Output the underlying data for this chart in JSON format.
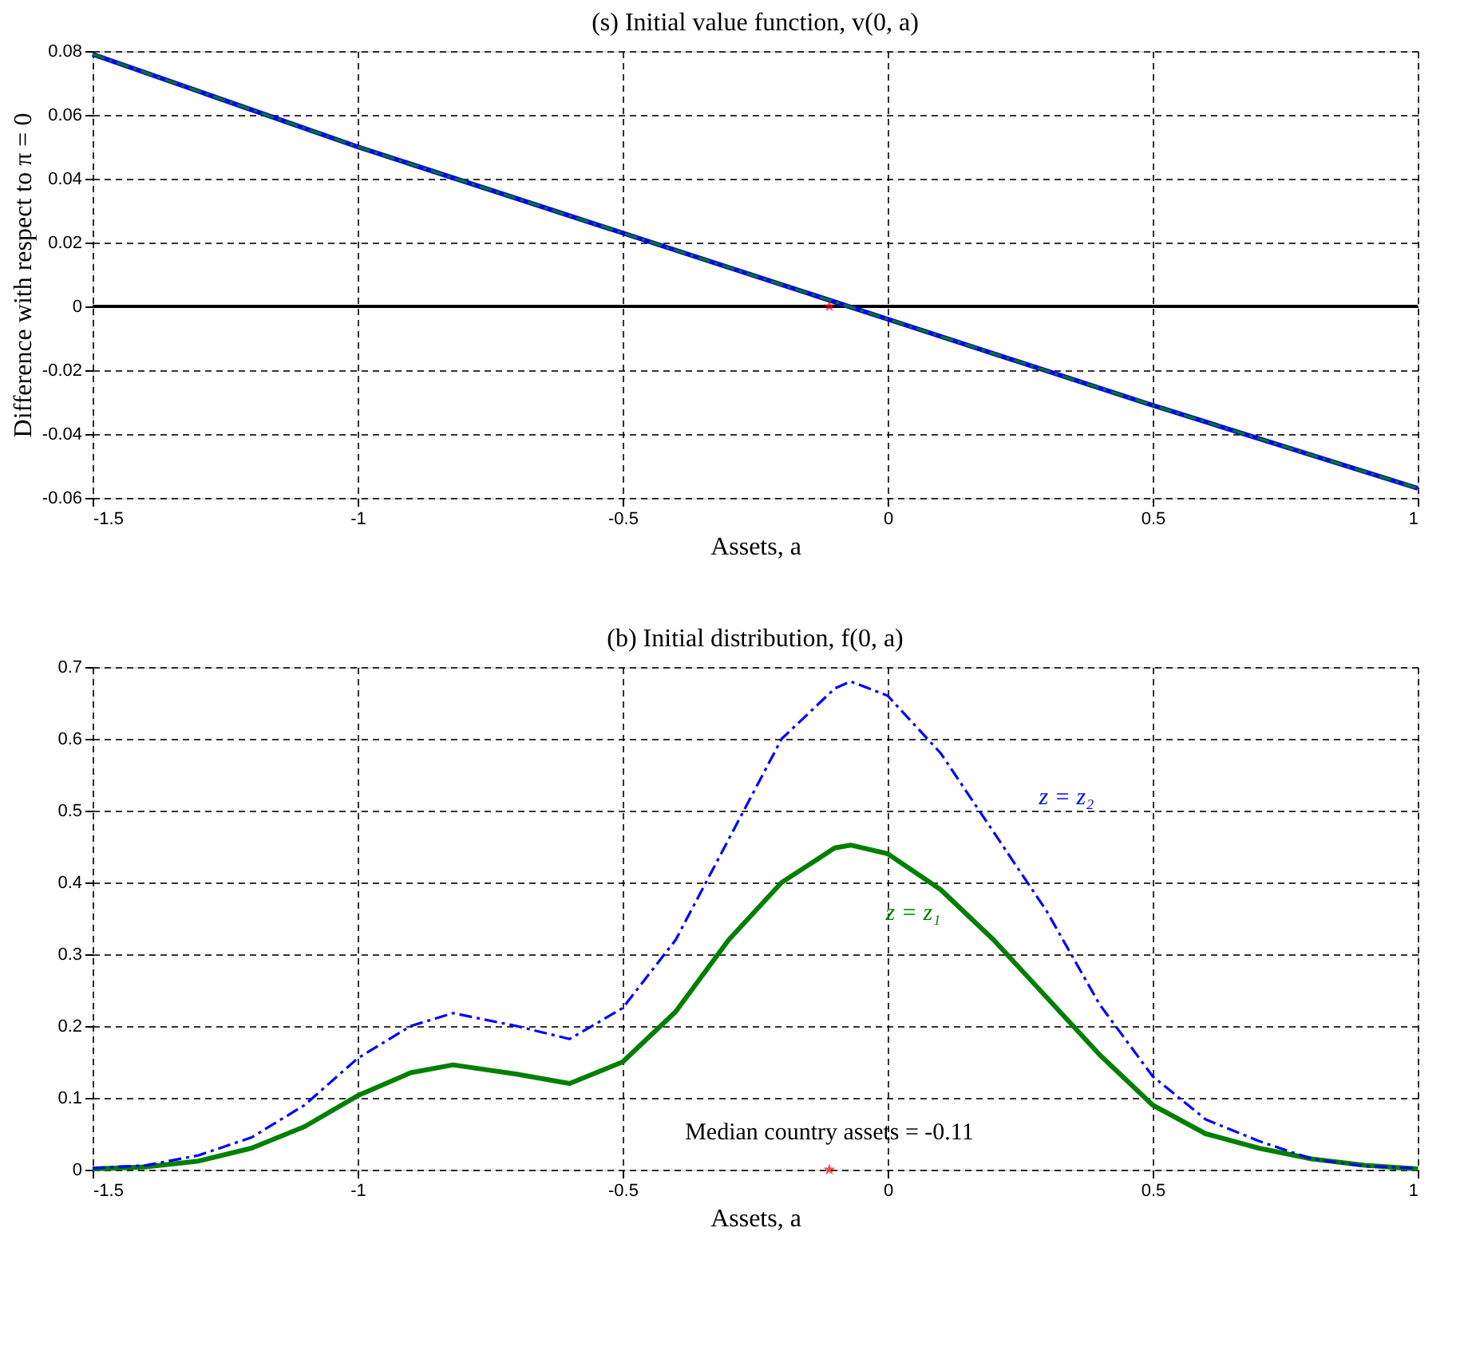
{
  "chart_data": [
    {
      "type": "line",
      "title": "(s) Initial value function, v(0, a)",
      "xlabel": "Assets, a",
      "ylabel": "Difference with respect to π = 0",
      "xlim": [
        -1.5,
        1
      ],
      "ylim": [
        -0.06,
        0.08
      ],
      "xticks": [
        -1.5,
        -1,
        -0.5,
        0,
        0.5,
        1
      ],
      "yticks": [
        -0.06,
        -0.04,
        -0.02,
        0,
        0.02,
        0.04,
        0.06,
        0.08
      ],
      "grid": true,
      "legend": false,
      "ref_lines": [
        {
          "axis": "y",
          "value": 0,
          "color": "#000000"
        }
      ],
      "series": [
        {
          "color": "#0000ff",
          "line_style": "solid",
          "x": [
            -1.5,
            -1,
            -0.5,
            0,
            0.5,
            1
          ],
          "values": [
            0.079,
            0.05,
            0.023,
            -0.004,
            -0.031,
            -0.057
          ]
        },
        {
          "color": "#007f00",
          "line_style": "dashed",
          "x": [
            -1.5,
            -1,
            -0.5,
            0,
            0.5,
            1
          ],
          "values": [
            0.079,
            0.05,
            0.023,
            -0.004,
            -0.031,
            -0.057
          ]
        },
        {
          "type": "scatter",
          "color": "#ff0000",
          "marker": "star",
          "x": [
            -0.11
          ],
          "values": [
            0
          ]
        }
      ]
    },
    {
      "type": "line",
      "title": "(b) Initial distribution, f(0, a)",
      "xlabel": "Assets, a",
      "xlim": [
        -1.5,
        1
      ],
      "ylim": [
        0,
        0.7
      ],
      "xticks": [
        -1.5,
        -1,
        -0.5,
        0,
        0.5,
        1
      ],
      "yticks": [
        0,
        0.1,
        0.2,
        0.3,
        0.4,
        0.5,
        0.6,
        0.7
      ],
      "grid": true,
      "legend": false,
      "annotations": [
        {
          "text": "Median country assets = -0.11",
          "x": -0.11,
          "y": 0
        }
      ],
      "series": [
        {
          "name": "z = z₁",
          "color": "#007f00",
          "line_style": "solid",
          "x": [
            -1.5,
            -1.4,
            -1.3,
            -1.2,
            -1.1,
            -1.0,
            -0.9,
            -0.82,
            -0.7,
            -0.6,
            -0.5,
            -0.4,
            -0.3,
            -0.2,
            -0.1,
            -0.07,
            0,
            0.1,
            0.2,
            0.3,
            0.4,
            0.5,
            0.6,
            0.7,
            0.8,
            0.9,
            1.0
          ],
          "values": [
            0.001,
            0.004,
            0.012,
            0.03,
            0.06,
            0.103,
            0.135,
            0.146,
            0.133,
            0.12,
            0.15,
            0.22,
            0.32,
            0.4,
            0.448,
            0.452,
            0.44,
            0.39,
            0.32,
            0.24,
            0.16,
            0.09,
            0.05,
            0.03,
            0.015,
            0.006,
            0.001
          ]
        },
        {
          "name": "z = z₂",
          "color": "#0000ff",
          "line_style": "dashed",
          "x": [
            -1.5,
            -1.4,
            -1.3,
            -1.2,
            -1.1,
            -1.0,
            -0.9,
            -0.82,
            -0.7,
            -0.6,
            -0.5,
            -0.4,
            -0.3,
            -0.2,
            -0.1,
            -0.07,
            0,
            0.1,
            0.2,
            0.3,
            0.4,
            0.5,
            0.6,
            0.7,
            0.8,
            0.9,
            1.0
          ],
          "values": [
            0.002,
            0.006,
            0.02,
            0.045,
            0.09,
            0.155,
            0.2,
            0.218,
            0.2,
            0.182,
            0.225,
            0.32,
            0.46,
            0.6,
            0.67,
            0.68,
            0.66,
            0.58,
            0.47,
            0.36,
            0.23,
            0.13,
            0.07,
            0.04,
            0.015,
            0.005,
            0.002
          ]
        },
        {
          "type": "scatter",
          "color": "#ff0000",
          "marker": "star",
          "x": [
            -0.11
          ],
          "values": [
            0
          ]
        }
      ]
    }
  ]
}
